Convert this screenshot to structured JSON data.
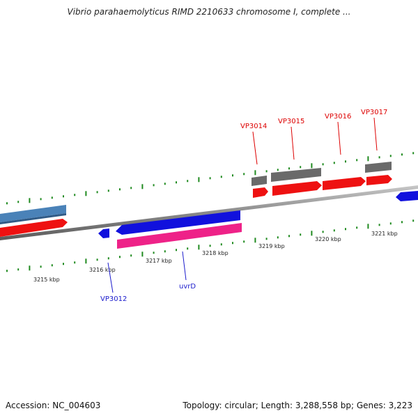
{
  "title": "Vibrio parahaemolyticus RIMD 2210633 chromosome I, complete ...",
  "footer": {
    "accession": "Accession: NC_004603",
    "summary": "Topology: circular; Length: 3,288,558 bp; Genes: 3,223"
  },
  "colors": {
    "forward_gene": "#ee1111",
    "reverse_gene": "#1111dd",
    "pink_feature": "#ee2288",
    "steel_feature": "#4a82b8",
    "gray_feature": "#6a6a6a",
    "backbone": "#8c8c8c",
    "ticks": "#1f8a1f",
    "label_forward": "#dd0000",
    "label_reverse": "#1a1acc"
  },
  "tick_labels": [
    "3215 kbp",
    "3216 kbp",
    "3217 kbp",
    "3218 kbp",
    "3219 kbp",
    "3220 kbp",
    "3221 kbp"
  ],
  "gene_labels": [
    {
      "name": "VP3012",
      "strand": "reverse"
    },
    {
      "name": "uvrD",
      "strand": "reverse"
    },
    {
      "name": "VP3014",
      "strand": "forward"
    },
    {
      "name": "VP3015",
      "strand": "forward"
    },
    {
      "name": "VP3016",
      "strand": "forward"
    },
    {
      "name": "VP3017",
      "strand": "forward"
    }
  ]
}
